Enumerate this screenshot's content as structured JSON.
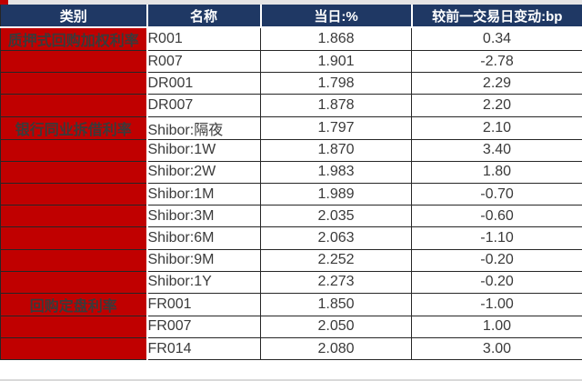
{
  "colors": {
    "header_bg": "#1f3864",
    "header_text": "#ffffff",
    "category_bg": "#c00000",
    "category_text": "#ffffff",
    "body_text": "#3a3a3a",
    "grid_dark": "#262626",
    "grid_light": "#ffffff",
    "strip_bg": "#e5e4e4",
    "page_bg": "#ffffff",
    "bottom_line": "#d9d9d9"
  },
  "chart_data": {
    "type": "table",
    "columns": [
      "类别",
      "名称",
      "当日:%",
      "较前一交易日变动:bp"
    ],
    "groups": [
      {
        "category": "质押式回购加权利率",
        "rows": [
          {
            "name": "R001",
            "today": "1.868",
            "change_bp": "0.34"
          },
          {
            "name": "R007",
            "today": "1.901",
            "change_bp": "-2.78"
          },
          {
            "name": "DR001",
            "today": "1.798",
            "change_bp": "2.29"
          },
          {
            "name": "DR007",
            "today": "1.878",
            "change_bp": "2.20"
          }
        ]
      },
      {
        "category": "银行同业拆借利率",
        "rows": [
          {
            "name": "Shibor:隔夜",
            "today": "1.797",
            "change_bp": "2.10"
          },
          {
            "name": "Shibor:1W",
            "today": "1.870",
            "change_bp": "3.40"
          },
          {
            "name": "Shibor:2W",
            "today": "1.983",
            "change_bp": "1.80"
          },
          {
            "name": "Shibor:1M",
            "today": "1.989",
            "change_bp": "-0.70"
          },
          {
            "name": "Shibor:3M",
            "today": "2.035",
            "change_bp": "-0.60"
          },
          {
            "name": "Shibor:6M",
            "today": "2.063",
            "change_bp": "-1.10"
          },
          {
            "name": "Shibor:9M",
            "today": "2.252",
            "change_bp": "-0.20"
          },
          {
            "name": "Shibor:1Y",
            "today": "2.273",
            "change_bp": "-0.20"
          }
        ]
      },
      {
        "category": "回购定盘利率",
        "rows": [
          {
            "name": "FR001",
            "today": "1.850",
            "change_bp": "-1.00"
          },
          {
            "name": "FR007",
            "today": "2.050",
            "change_bp": "1.00"
          },
          {
            "name": "FR014",
            "today": "2.080",
            "change_bp": "3.00"
          }
        ]
      }
    ]
  }
}
